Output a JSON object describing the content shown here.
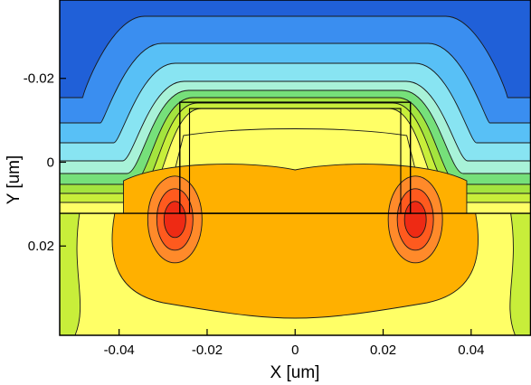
{
  "chart_data": {
    "type": "heatmap",
    "subtype": "filled-contour",
    "title": "",
    "xlabel": "X [um]",
    "ylabel": "Y [um]",
    "xlim": [
      -0.0535,
      0.0535
    ],
    "ylim": [
      0.0413,
      -0.0387
    ],
    "y_axis_inverted": true,
    "x_ticks": [
      {
        "value": -0.04,
        "label": "-0.04"
      },
      {
        "value": -0.02,
        "label": "-0.02"
      },
      {
        "value": 0,
        "label": "0"
      },
      {
        "value": 0.02,
        "label": "0.02"
      },
      {
        "value": 0.04,
        "label": "0.04"
      }
    ],
    "y_ticks": [
      {
        "value": -0.02,
        "label": "-0.02"
      },
      {
        "value": 0,
        "label": "0"
      },
      {
        "value": 0.02,
        "label": "0.02"
      }
    ],
    "grid": false,
    "legend": "none",
    "colormap": [
      "#2060d8",
      "#3a8ef0",
      "#58c0f6",
      "#88e4f2",
      "#a8f2d8",
      "#76e07a",
      "#a4e43e",
      "#c8ee3a",
      "#ffff66",
      "#ffd23c",
      "#ffb000",
      "#ff8a2a",
      "#ff5a1e",
      "#ee2a14"
    ],
    "interface_y": 0.0122,
    "gate_box": {
      "x": [
        -0.0262,
        0.0262
      ],
      "y": [
        -0.0143,
        0.0122
      ]
    },
    "gate_inner_box": {
      "x": [
        -0.024,
        0.024
      ],
      "y": [
        -0.0128,
        0.0122
      ]
    },
    "hotspots": [
      {
        "x": -0.0265,
        "y": 0.0128
      },
      {
        "x": 0.0265,
        "y": 0.0128
      }
    ]
  }
}
